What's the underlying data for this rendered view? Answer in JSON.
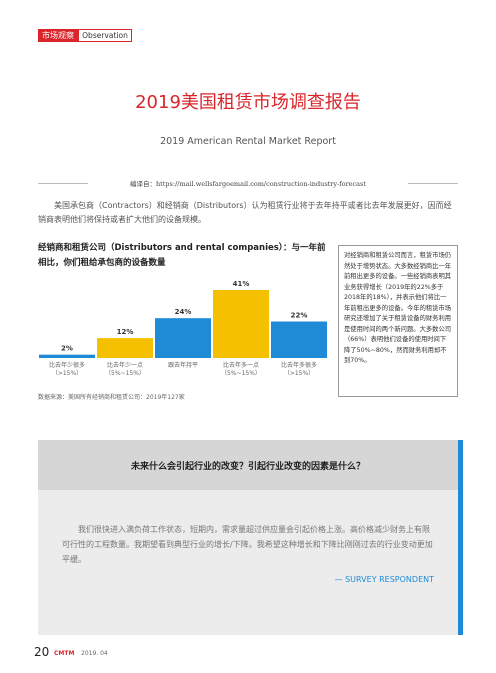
{
  "header": {
    "section": "市场观察",
    "tag": "Observation"
  },
  "title": "2019美国租赁市场调查报告",
  "subtitle": "2019 American Rental Market Report",
  "source_note": "编译自：https://mail.wellsfargoemail.com/construction-industry-forecast",
  "intro": "美国承包商（Contractors）和经销商（Distributors）认为租赁行业将于去年持平或者比去年发展更好，因而经销商表明他们将保持或者扩大他们的设备规模。",
  "chart_data": {
    "type": "bar",
    "title": "经销商和租赁公司（Distributors and rental companies）：与一年前相比，你们租给承包商的设备数量",
    "categories": [
      [
        "比去年少很多",
        "（>15%）"
      ],
      [
        "比去年少一点",
        "（5%~15%）"
      ],
      [
        "跟去年持平"
      ],
      [
        "比去年多一点",
        "（5%~15%）"
      ],
      [
        "比去年多很多",
        "（>15%）"
      ]
    ],
    "values": [
      2,
      12,
      24,
      41,
      22
    ],
    "value_labels": [
      "2%",
      "12%",
      "24%",
      "41%",
      "22%"
    ],
    "colors": [
      "#1f8ad6",
      "#f5c000",
      "#1f8ad6",
      "#f5c000",
      "#1f8ad6"
    ],
    "source": "数据来源：美国所有经销商和租赁公司：2019年127家"
  },
  "sidebar": "对经销商和租赁公司而言，租赁市场仍然处于增势状态。大多数经销商比一年前租出更多的设备。一些经销商表明其业务获得增长（2019年的22%多于2018年的18%），并表示他们将比一年前租出更多的设备。今年的租赁市场研究还增加了关于租赁设备的财务利用是使用时间的两个新问题。大多数公司（66%）表明他们设备的使用时间下降了50%~80%，然而财务利用却不到70%。",
  "quote": {
    "question": "未来什么会引起行业的改变？引起行业改变的因素是什么？",
    "body": "我们很快进入满负荷工作状态，短期内，需求量超过供应量会引起价格上涨。高价格减少财务上有限可行性的工程数量。我期望看到典型行业的增长/下降。我希望这种增长和下降比刚刚过去的行业变动更加平缓。",
    "attribution": "— SURVEY RESPONDENT"
  },
  "footer": {
    "page": "20",
    "brand": "CMTM",
    "date": "2019. 04"
  }
}
